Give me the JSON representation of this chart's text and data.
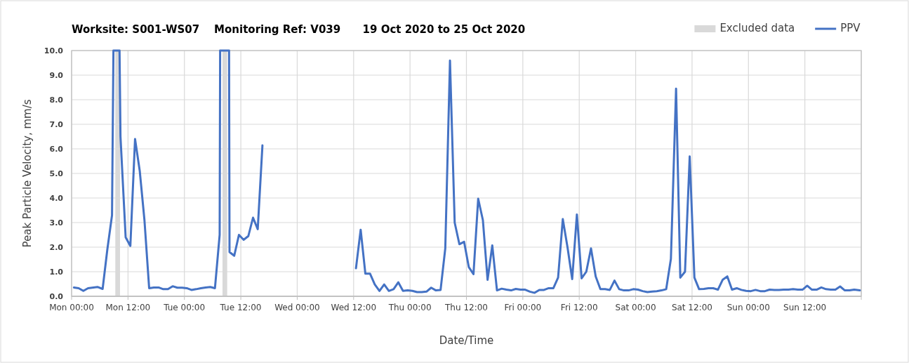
{
  "chart_data": {
    "type": "line",
    "title": "Worksite: S001-WS07    Monitoring Ref: V039      19 Oct 2020 to 25 Oct 2020",
    "xlabel": "Date/Time",
    "ylabel": "Peak Particle Velocity, mm/s",
    "xlim": [
      "2020-10-19T00:00",
      "2020-10-26T00:00"
    ],
    "xticks": [
      {
        "value": "2020-10-19T00:00",
        "label": "Mon 00:00"
      },
      {
        "value": "2020-10-19T12:00",
        "label": "Mon 12:00"
      },
      {
        "value": "2020-10-20T00:00",
        "label": "Tue 00:00"
      },
      {
        "value": "2020-10-20T12:00",
        "label": "Tue 12:00"
      },
      {
        "value": "2020-10-21T00:00",
        "label": "Wed 00:00"
      },
      {
        "value": "2020-10-21T12:00",
        "label": "Wed 12:00"
      },
      {
        "value": "2020-10-22T00:00",
        "label": "Thu 00:00"
      },
      {
        "value": "2020-10-22T12:00",
        "label": "Thu 12:00"
      },
      {
        "value": "2020-10-23T00:00",
        "label": "Fri 00:00"
      },
      {
        "value": "2020-10-23T12:00",
        "label": "Fri 12:00"
      },
      {
        "value": "2020-10-24T00:00",
        "label": "Sat 00:00"
      },
      {
        "value": "2020-10-24T12:00",
        "label": "Sat 12:00"
      },
      {
        "value": "2020-10-25T00:00",
        "label": "Sun 00:00"
      },
      {
        "value": "2020-10-25T12:00",
        "label": "Sun 12:00"
      },
      {
        "value": "2020-10-26T00:00",
        "label": null
      }
    ],
    "ylim": [
      0,
      10
    ],
    "yticks": [
      {
        "value": 0,
        "label": "0.0"
      },
      {
        "value": 1,
        "label": "1.0"
      },
      {
        "value": 2,
        "label": "2.0"
      },
      {
        "value": 3,
        "label": "3.0"
      },
      {
        "value": 4,
        "label": "4.0"
      },
      {
        "value": 5,
        "label": "5.0"
      },
      {
        "value": 6,
        "label": "6.0"
      },
      {
        "value": 7,
        "label": "7.0"
      },
      {
        "value": 8,
        "label": "8.0"
      },
      {
        "value": 9,
        "label": "9.0"
      },
      {
        "value": 10,
        "label": "10.0"
      }
    ],
    "grid": true,
    "legend": "top right",
    "marker": "none",
    "line_style": "solid",
    "bands": [
      {
        "axis": "x",
        "from": "2020-10-19T09:18",
        "to": "2020-10-19T10:18",
        "label": "Excluded data",
        "color": "#d9d9d9"
      },
      {
        "axis": "x",
        "from": "2020-10-20T08:06",
        "to": "2020-10-20T09:06",
        "color": "#d9d9d9"
      }
    ],
    "series": [
      {
        "name": "PPV",
        "color": "#4472c4",
        "x": [
          "2020-10-19T00:30",
          "2020-10-19T01:30",
          "2020-10-19T02:30",
          "2020-10-19T03:30",
          "2020-10-19T05:30",
          "2020-10-19T06:36",
          "2020-10-19T07:36",
          "2020-10-19T08:36",
          "2020-10-19T08:54",
          "2020-10-19T10:12",
          "2020-10-19T10:24",
          "2020-10-19T11:30",
          "2020-10-19T12:30",
          "2020-10-19T13:30",
          "2020-10-19T14:30",
          "2020-10-19T15:30",
          "2020-10-19T16:30",
          "2020-10-19T17:30",
          "2020-10-19T18:30",
          "2020-10-19T19:30",
          "2020-10-19T20:30",
          "2020-10-19T21:30",
          "2020-10-19T22:30",
          "2020-10-19T23:30",
          "2020-10-20T00:30",
          "2020-10-20T01:30",
          "2020-10-20T02:30",
          "2020-10-20T03:30",
          "2020-10-20T04:30",
          "2020-10-20T05:30",
          "2020-10-20T06:30",
          "2020-10-20T07:30",
          "2020-10-20T07:36",
          "2020-10-20T09:30",
          "2020-10-20T09:36",
          "2020-10-20T10:36",
          "2020-10-20T11:36",
          "2020-10-20T12:36",
          "2020-10-20T13:36",
          "2020-10-20T14:36",
          "2020-10-20T15:36",
          "2020-10-20T16:36",
          "2020-10-21T02:00",
          "2020-10-21T12:30",
          "2020-10-21T13:30",
          "2020-10-21T14:30",
          "2020-10-21T15:30",
          "2020-10-21T16:30",
          "2020-10-21T17:30",
          "2020-10-21T18:30",
          "2020-10-21T19:30",
          "2020-10-21T20:30",
          "2020-10-21T21:30",
          "2020-10-21T22:30",
          "2020-10-21T23:30",
          "2020-10-22T00:30",
          "2020-10-22T01:30",
          "2020-10-22T02:30",
          "2020-10-22T03:30",
          "2020-10-22T04:30",
          "2020-10-22T05:30",
          "2020-10-22T06:30",
          "2020-10-22T07:30",
          "2020-10-22T08:30",
          "2020-10-22T09:30",
          "2020-10-22T10:30",
          "2020-10-22T11:30",
          "2020-10-22T12:30",
          "2020-10-22T13:30",
          "2020-10-22T14:30",
          "2020-10-22T15:30",
          "2020-10-22T16:30",
          "2020-10-22T17:30",
          "2020-10-22T18:30",
          "2020-10-22T19:30",
          "2020-10-22T20:30",
          "2020-10-22T21:30",
          "2020-10-22T22:30",
          "2020-10-22T23:30",
          "2020-10-23T00:30",
          "2020-10-23T01:30",
          "2020-10-23T02:30",
          "2020-10-23T03:30",
          "2020-10-23T04:30",
          "2020-10-23T05:30",
          "2020-10-23T06:30",
          "2020-10-23T07:30",
          "2020-10-23T08:30",
          "2020-10-23T09:30",
          "2020-10-23T10:30",
          "2020-10-23T11:30",
          "2020-10-23T12:30",
          "2020-10-23T13:30",
          "2020-10-23T14:30",
          "2020-10-23T15:30",
          "2020-10-23T16:30",
          "2020-10-23T17:30",
          "2020-10-23T18:30",
          "2020-10-23T19:30",
          "2020-10-23T20:30",
          "2020-10-23T21:30",
          "2020-10-23T22:30",
          "2020-10-23T23:30",
          "2020-10-24T00:30",
          "2020-10-24T01:30",
          "2020-10-24T02:30",
          "2020-10-24T03:30",
          "2020-10-24T04:30",
          "2020-10-24T05:30",
          "2020-10-24T06:30",
          "2020-10-24T07:30",
          "2020-10-24T08:36",
          "2020-10-24T09:30",
          "2020-10-24T10:30",
          "2020-10-24T11:30",
          "2020-10-24T12:30",
          "2020-10-24T13:30",
          "2020-10-24T14:30",
          "2020-10-24T15:30",
          "2020-10-24T16:30",
          "2020-10-24T17:30",
          "2020-10-24T18:30",
          "2020-10-24T19:30",
          "2020-10-24T20:30",
          "2020-10-24T21:30",
          "2020-10-24T22:30",
          "2020-10-24T23:30",
          "2020-10-25T00:30",
          "2020-10-25T01:30",
          "2020-10-25T02:30",
          "2020-10-25T03:30",
          "2020-10-25T04:30",
          "2020-10-25T05:30",
          "2020-10-25T06:30",
          "2020-10-25T07:30",
          "2020-10-25T08:30",
          "2020-10-25T09:30",
          "2020-10-25T10:30",
          "2020-10-25T11:30",
          "2020-10-25T12:30",
          "2020-10-25T13:30",
          "2020-10-25T14:30",
          "2020-10-25T15:30",
          "2020-10-25T16:30",
          "2020-10-25T17:30",
          "2020-10-25T18:30",
          "2020-10-25T19:30",
          "2020-10-25T20:30",
          "2020-10-25T21:30",
          "2020-10-25T22:30",
          "2020-10-25T23:42"
        ],
        "values": [
          0.36,
          0.33,
          0.22,
          0.33,
          0.38,
          0.3,
          1.9,
          3.3,
          10,
          10,
          6.5,
          2.4,
          2.05,
          6.4,
          5.1,
          3.1,
          0.33,
          0.36,
          0.36,
          0.29,
          0.29,
          0.41,
          0.35,
          0.35,
          0.33,
          0.26,
          0.29,
          0.33,
          0.36,
          0.38,
          0.33,
          2.5,
          10,
          10,
          1.8,
          1.65,
          2.5,
          2.3,
          2.45,
          3.2,
          2.73,
          6.14,
          null,
          1.14,
          2.71,
          0.92,
          0.92,
          0.48,
          0.22,
          0.48,
          0.22,
          0.29,
          0.57,
          0.22,
          0.24,
          0.22,
          0.17,
          0.17,
          0.19,
          0.35,
          0.24,
          0.26,
          1.95,
          9.59,
          3.0,
          2.12,
          2.22,
          1.19,
          0.9,
          3.97,
          3.1,
          0.67,
          2.07,
          0.24,
          0.31,
          0.27,
          0.24,
          0.3,
          0.27,
          0.27,
          0.19,
          0.14,
          0.26,
          0.26,
          0.33,
          0.33,
          0.76,
          3.14,
          2.0,
          0.7,
          3.33,
          0.73,
          1.0,
          1.95,
          0.81,
          0.29,
          0.29,
          0.26,
          0.64,
          0.29,
          0.24,
          0.24,
          0.29,
          0.27,
          0.21,
          0.17,
          0.19,
          0.21,
          0.24,
          0.29,
          1.52,
          8.45,
          0.76,
          1.0,
          5.69,
          0.76,
          0.29,
          0.3,
          0.33,
          0.33,
          0.27,
          0.67,
          0.81,
          0.27,
          0.33,
          0.26,
          0.22,
          0.21,
          0.26,
          0.21,
          0.21,
          0.27,
          0.26,
          0.26,
          0.27,
          0.27,
          0.29,
          0.27,
          0.27,
          0.43,
          0.27,
          0.27,
          0.36,
          0.29,
          0.27,
          0.27,
          0.4,
          0.24,
          0.24,
          0.27,
          0.24
        ]
      }
    ]
  }
}
